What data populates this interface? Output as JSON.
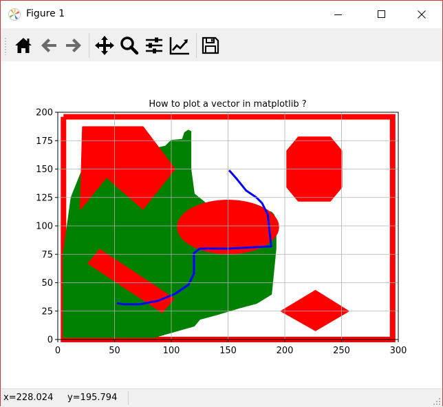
{
  "window": {
    "title": "Figure 1"
  },
  "toolbar": {
    "buttons": [
      {
        "name": "home-button",
        "icon": "home-icon"
      },
      {
        "name": "back-button",
        "icon": "arrow-left-icon"
      },
      {
        "name": "forward-button",
        "icon": "arrow-right-icon"
      },
      {
        "name": "pan-button",
        "icon": "move-icon"
      },
      {
        "name": "zoom-button",
        "icon": "search-icon"
      },
      {
        "name": "configure-subplots-button",
        "icon": "sliders-icon"
      },
      {
        "name": "edit-axis-button",
        "icon": "line-chart-icon"
      },
      {
        "name": "save-button",
        "icon": "save-icon"
      }
    ]
  },
  "chart_data": {
    "type": "scatter",
    "title": "How to plot a vector in matplotlib ?",
    "xlim": [
      0,
      300
    ],
    "ylim": [
      0,
      200
    ],
    "xticks": [
      "0",
      "50",
      "100",
      "150",
      "200",
      "250",
      "300"
    ],
    "yticks": [
      "0",
      "25",
      "50",
      "75",
      "100",
      "125",
      "150",
      "175",
      "200"
    ],
    "grid": true,
    "colors": {
      "red": "#ff0000",
      "green": "#008000",
      "blue": "#0000ff"
    },
    "series": [
      {
        "color": "red",
        "shape": "rectangle-border",
        "x": [
          5,
          295,
          295,
          5,
          5
        ],
        "y": [
          196,
          196,
          0,
          0,
          196
        ]
      },
      {
        "color": "green",
        "shape": "filled-polygon",
        "x": [
          12,
          22,
          50,
          95,
          100,
          110,
          112,
          115,
          117,
          117,
          120,
          130,
          160,
          175,
          188,
          190,
          192,
          192,
          188,
          175,
          160,
          140,
          125,
          120,
          95,
          85,
          5,
          5,
          12
        ],
        "y": [
          125,
          150,
          160,
          170,
          175,
          176,
          182,
          184,
          183,
          150,
          128,
          120,
          118,
          114,
          112,
          110,
          105,
          80,
          40,
          32,
          28,
          22,
          18,
          12,
          5,
          2,
          2,
          75,
          125
        ]
      },
      {
        "color": "red",
        "shape": "filled-polygon",
        "x": [
          22,
          75,
          103,
          75,
          43,
          20,
          22
        ],
        "y": [
          187,
          187,
          150,
          115,
          143,
          115,
          187
        ]
      },
      {
        "color": "red",
        "shape": "filled-ellipse",
        "cx": 150,
        "cy": 99,
        "rx": 45,
        "ry": 24
      },
      {
        "color": "red",
        "shape": "filled-polygon",
        "x": [
          212,
          240,
          250,
          250,
          240,
          212,
          202,
          202,
          212
        ],
        "y": [
          178,
          178,
          166,
          134,
          122,
          122,
          134,
          166,
          178
        ]
      },
      {
        "color": "red",
        "shape": "filled-polygon",
        "x": [
          227,
          256,
          227,
          197,
          227
        ],
        "y": [
          43,
          25,
          8,
          25,
          43
        ]
      },
      {
        "color": "red",
        "shape": "filled-polygon",
        "x": [
          27,
          37,
          102,
          92,
          27
        ],
        "y": [
          67,
          79,
          36,
          24,
          67
        ]
      },
      {
        "color": "blue",
        "shape": "line",
        "x": [
          151,
          158,
          166,
          175,
          180,
          183,
          185,
          188,
          150,
          125,
          120,
          120,
          115,
          103,
          88,
          72,
          58,
          52
        ],
        "y": [
          149,
          141,
          131,
          125,
          120,
          114,
          110,
          82,
          80,
          80,
          76,
          58,
          48,
          40,
          34,
          31,
          31,
          32
        ]
      }
    ]
  },
  "status": {
    "x_readout": "x=228.024",
    "y_readout": "y=195.794"
  }
}
